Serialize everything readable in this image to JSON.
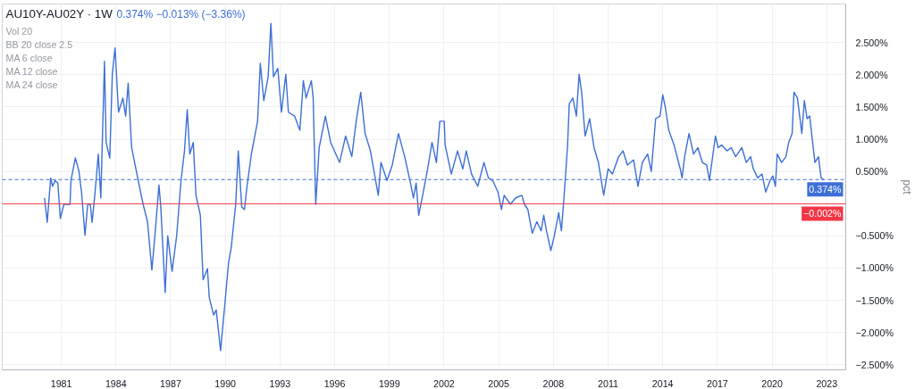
{
  "chart_data": {
    "type": "line",
    "title": "AU10Y-AU02Y · 1W",
    "subtitle": "0.374%  −0.013% (−3.36%)",
    "ylabel": "pct",
    "annotations": [
      "Vol 20",
      "BB 20 close 2.5",
      "MA 6 close",
      "MA 12 close",
      "MA 24 close"
    ],
    "x": [
      1980.08,
      1980.23,
      1980.32,
      1980.42,
      1980.52,
      1980.66,
      1980.81,
      1980.95,
      1981.14,
      1981.48,
      1981.53,
      1981.77,
      1981.97,
      1982.11,
      1982.3,
      1982.45,
      1982.59,
      1982.69,
      1982.84,
      1983.03,
      1983.17,
      1983.37,
      1983.46,
      1983.66,
      1983.8,
      1983.95,
      1984.14,
      1984.38,
      1984.53,
      1984.67,
      1984.86,
      1985.15,
      1985.49,
      1985.73,
      1985.97,
      1986.12,
      1986.36,
      1986.46,
      1986.7,
      1986.84,
      1987.08,
      1987.33,
      1987.57,
      1987.76,
      1987.91,
      1988.05,
      1988.24,
      1988.39,
      1988.63,
      1988.78,
      1989.02,
      1989.12,
      1989.36,
      1989.5,
      1989.74,
      1989.99,
      1990.18,
      1990.32,
      1990.57,
      1990.71,
      1990.9,
      1991.05,
      1991.19,
      1991.43,
      1991.77,
      1991.92,
      1992.11,
      1992.35,
      1992.5,
      1992.64,
      1992.88,
      1993.08,
      1993.32,
      1993.46,
      1993.8,
      1994.09,
      1994.28,
      1994.43,
      1994.72,
      1994.82,
      1994.96,
      1995.15,
      1995.49,
      1995.78,
      1996.27,
      1996.6,
      1996.94,
      1997.18,
      1997.43,
      1997.67,
      1997.96,
      1998.39,
      1998.54,
      1998.87,
      1999.16,
      1999.5,
      1999.84,
      2000.13,
      2000.32,
      2000.47,
      2000.61,
      2000.86,
      2001.1,
      2001.34,
      2001.58,
      2001.77,
      2002.01,
      2002.06,
      2002.4,
      2002.74,
      2003.03,
      2003.22,
      2003.51,
      2003.85,
      2004.19,
      2004.43,
      2004.67,
      2004.96,
      2005.15,
      2005.3,
      2005.64,
      2005.93,
      2006.27,
      2006.41,
      2006.6,
      2006.84,
      2007.09,
      2007.33,
      2007.47,
      2007.62,
      2007.86,
      2008.05,
      2008.29,
      2008.44,
      2008.58,
      2008.78,
      2008.87,
      2009.07,
      2009.26,
      2009.41,
      2009.55,
      2009.74,
      2009.99,
      2010.23,
      2010.47,
      2010.76,
      2011.0,
      2011.24,
      2011.58,
      2011.82,
      2012.06,
      2012.4,
      2012.64,
      2012.88,
      2013.17,
      2013.37,
      2013.61,
      2013.85,
      2014.0,
      2014.14,
      2014.33,
      2014.62,
      2014.96,
      2015.06,
      2015.2,
      2015.44,
      2015.69,
      2015.93,
      2016.17,
      2016.41,
      2016.56,
      2016.89,
      2017.04,
      2017.23,
      2017.52,
      2017.76,
      2018.0,
      2018.34,
      2018.58,
      2018.82,
      2018.97,
      2019.21,
      2019.45,
      2019.65,
      2019.89,
      2020.04,
      2020.18,
      2020.28,
      2020.52,
      2020.76,
      2020.91,
      2021.1,
      2021.2,
      2021.39,
      2021.63,
      2021.77,
      2021.92,
      2022.06,
      2022.2,
      2022.35,
      2022.54,
      2022.69,
      2022.83
    ],
    "series": [
      {
        "color": "#3d6fd6",
        "values": [
          0.09,
          -0.29,
          0.05,
          0.4,
          0.27,
          0.36,
          0.32,
          -0.23,
          -0.01,
          -0.01,
          0.36,
          0.71,
          0.5,
          0.18,
          -0.49,
          -0.01,
          -0.01,
          -0.29,
          0.13,
          0.77,
          0.09,
          2.21,
          0.95,
          0.71,
          2.01,
          2.42,
          1.42,
          1.64,
          1.36,
          1.87,
          0.87,
          0.46,
          -0.01,
          -0.28,
          -1.03,
          -0.55,
          0.29,
          -0.05,
          -1.38,
          -0.5,
          -1.05,
          -0.5,
          0.36,
          0.82,
          1.46,
          0.77,
          0.95,
          0.13,
          -0.18,
          -1.18,
          -1.01,
          -1.46,
          -1.73,
          -1.65,
          -2.28,
          -1.51,
          -0.91,
          -0.69,
          -0.01,
          0.82,
          -0.05,
          -0.09,
          0.27,
          0.77,
          1.28,
          2.18,
          1.6,
          1.97,
          2.8,
          1.97,
          2.1,
          1.42,
          2.01,
          1.42,
          1.36,
          1.14,
          1.91,
          1.64,
          1.91,
          1.64,
          -0.01,
          0.87,
          1.36,
          0.95,
          0.64,
          1.05,
          0.73,
          1.28,
          1.73,
          1.09,
          0.82,
          0.13,
          0.64,
          0.36,
          0.6,
          1.09,
          0.73,
          0.36,
          0.09,
          0.32,
          -0.18,
          0.18,
          0.54,
          0.95,
          0.64,
          1.28,
          1.28,
          0.91,
          0.46,
          0.82,
          0.54,
          0.82,
          0.46,
          0.27,
          0.64,
          0.4,
          0.36,
          0.18,
          -0.09,
          0.13,
          -0.01,
          0.09,
          0.13,
          -0.01,
          -0.09,
          -0.46,
          -0.28,
          -0.42,
          -0.18,
          -0.42,
          -0.73,
          -0.5,
          -0.14,
          -0.42,
          0.09,
          0.91,
          1.55,
          1.64,
          1.36,
          2.01,
          1.73,
          1.05,
          1.32,
          0.87,
          0.64,
          0.13,
          0.54,
          0.46,
          0.73,
          0.82,
          0.6,
          0.68,
          0.27,
          0.64,
          0.77,
          0.5,
          1.32,
          1.36,
          1.69,
          1.5,
          1.14,
          0.91,
          0.54,
          0.4,
          0.73,
          1.09,
          0.77,
          0.87,
          0.64,
          0.6,
          0.36,
          1.05,
          0.87,
          0.91,
          0.82,
          0.87,
          0.73,
          0.87,
          0.64,
          0.73,
          0.54,
          0.4,
          0.46,
          0.18,
          0.36,
          0.43,
          0.27,
          0.77,
          0.64,
          0.73,
          0.95,
          1.09,
          1.73,
          1.64,
          1.09,
          1.6,
          1.32,
          1.36,
          1.01,
          0.64,
          0.73,
          0.4,
          0.37
        ]
      }
    ],
    "xlim": [
      1977.76,
      2024.04
    ],
    "ylim": [
      -2.58,
      3.1
    ],
    "xticks": [
      1981,
      1984,
      1987,
      1990,
      1993,
      1996,
      1999,
      2002,
      2005,
      2008,
      2011,
      2014,
      2017,
      2020,
      2023
    ],
    "yticks": [
      {
        "value": 2.5,
        "label": "2.500%"
      },
      {
        "value": 2,
        "label": "2.000%"
      },
      {
        "value": 1.5,
        "label": "1.500%"
      },
      {
        "value": 1,
        "label": "1.000%"
      },
      {
        "value": 0.5,
        "label": "0.500%"
      },
      {
        "value": -0.5,
        "label": "−0.500%"
      },
      {
        "value": -1,
        "label": "−1.000%"
      },
      {
        "value": -1.5,
        "label": "−1.500%"
      },
      {
        "value": -2,
        "label": "−2.000%"
      },
      {
        "value": -2.5,
        "label": "−2.500%"
      }
    ],
    "ref_lines": [
      {
        "axis": "y",
        "value": 0.374,
        "label": "0.374%",
        "color": "#3d6fd6",
        "line_style": "dashed"
      },
      {
        "axis": "y",
        "value": -0.002,
        "label": "−0.002%",
        "color": "#f23645",
        "line_style": "solid"
      }
    ],
    "grid": true,
    "marker": "none",
    "line_style": "solid"
  }
}
